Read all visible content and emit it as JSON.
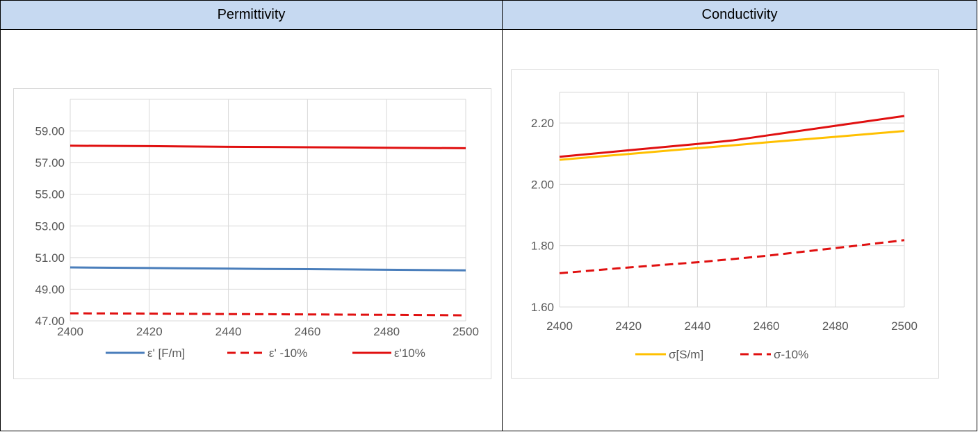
{
  "headers": {
    "left": "Permittivity",
    "right": "Conductivity"
  },
  "chart_data": [
    {
      "type": "line",
      "x": [
        2400,
        2420,
        2440,
        2450,
        2460,
        2480,
        2500
      ],
      "xticks": [
        "2400",
        "2420",
        "2440",
        "2460",
        "2480",
        "2500"
      ],
      "xlim": [
        2400,
        2500
      ],
      "ylim": [
        47,
        61
      ],
      "yticks": [
        "47.00",
        "49.00",
        "51.00",
        "53.00",
        "55.00",
        "57.00",
        "59.00"
      ],
      "grid": true,
      "legend_position": "bottom",
      "series": [
        {
          "name": "ε' [F/m]",
          "color": "#4a7ebb",
          "dash": false,
          "values": [
            50.38,
            50.34,
            50.3,
            50.28,
            50.27,
            50.23,
            50.19
          ]
        },
        {
          "name": "ε' -10%",
          "color": "#e01010",
          "dash": true,
          "values": [
            47.48,
            47.46,
            47.43,
            47.42,
            47.41,
            47.38,
            47.35
          ]
        },
        {
          "name": "ε'10%",
          "color": "#e01010",
          "dash": false,
          "values": [
            58.07,
            58.04,
            58.0,
            57.99,
            57.97,
            57.94,
            57.91
          ]
        }
      ]
    },
    {
      "type": "line",
      "x": [
        2400,
        2420,
        2440,
        2450,
        2460,
        2480,
        2500
      ],
      "xticks": [
        "2400",
        "2420",
        "2440",
        "2460",
        "2480",
        "2500"
      ],
      "xlim": [
        2400,
        2500
      ],
      "ylim": [
        1.6,
        2.3
      ],
      "yticks": [
        "1.60",
        "1.80",
        "2.00",
        "2.20"
      ],
      "grid": true,
      "legend_position": "bottom",
      "series": [
        {
          "name": "σ[S/m]",
          "color": "#ffc000",
          "dash": false,
          "legend": true,
          "values": [
            2.08,
            2.099,
            2.118,
            2.127,
            2.137,
            2.155,
            2.174
          ]
        },
        {
          "name": "σ-10%",
          "color": "#e01010",
          "dash": true,
          "legend": true,
          "values": [
            1.71,
            1.729,
            1.746,
            1.756,
            1.767,
            1.792,
            1.818
          ]
        },
        {
          "name": "",
          "color": "#e01010",
          "dash": false,
          "legend": false,
          "values": [
            2.09,
            2.111,
            2.132,
            2.143,
            2.159,
            2.191,
            2.223
          ]
        }
      ]
    }
  ]
}
